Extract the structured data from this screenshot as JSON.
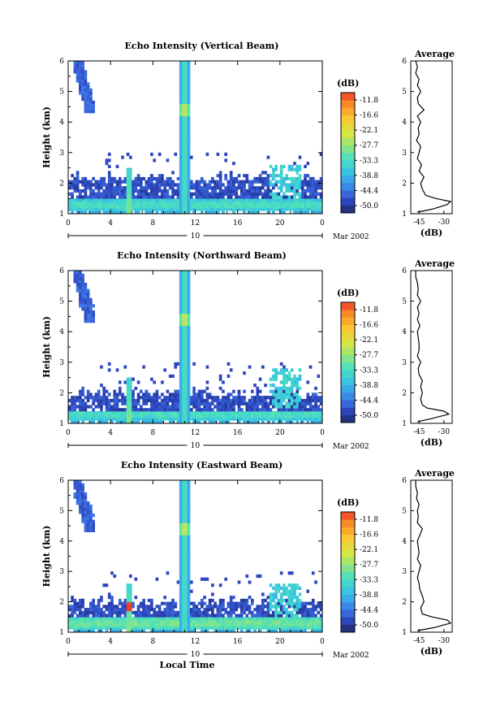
{
  "chart_data": [
    {
      "type": "heatmap",
      "title": "Echo Intensity (Vertical Beam)",
      "ylabel": "Height (km)",
      "x_ticks": [
        "0",
        "4",
        "8",
        "12",
        "16",
        "20",
        "0"
      ],
      "y_ticks": [
        "1",
        "2",
        "3",
        "4",
        "5",
        "6"
      ],
      "ylim": [
        1,
        6
      ],
      "day_label": "10",
      "date_label": "Mar 2002",
      "colorbar": {
        "unit": "(dB)",
        "ticks": [
          "-11.8",
          "-16.6",
          "-22.1",
          "-27.7",
          "-33.3",
          "-38.8",
          "-44.4",
          "-50.0"
        ]
      },
      "features": {
        "surface_layer": {
          "top_km": 1.5,
          "peak_db": -33
        },
        "boundary_layer_echo": {
          "top_km": 2.2,
          "db": -48
        },
        "plume_a": {
          "hour": 5.8,
          "top_km": 2.5
        },
        "plume_b": {
          "hour": 11,
          "top_km": 6
        },
        "high_cloud": {
          "hours": [
            0.5,
            2.5
          ],
          "km": [
            4.3,
            6
          ]
        },
        "late_cells": {
          "hours": [
            19,
            22
          ],
          "top_km": 2.6
        }
      },
      "average_profile": {
        "title": "Average",
        "xlabel": "(dB)",
        "x_ticks": [
          "-45",
          "-30"
        ],
        "xlim": [
          -50,
          -25
        ],
        "height_km": [
          1.05,
          1.15,
          1.3,
          1.4,
          1.5,
          1.6,
          1.8,
          2.0,
          2.2,
          2.4,
          2.6,
          2.8,
          3.0,
          3.2,
          3.4,
          3.6,
          3.8,
          4.0,
          4.1,
          4.2,
          4.4,
          4.6,
          4.8,
          5.0,
          5.2,
          5.4,
          5.6,
          5.8,
          6.0
        ],
        "db": [
          -46,
          -37,
          -28,
          -26,
          -35,
          -41,
          -43,
          -44,
          -42,
          -45,
          -43.5,
          -46,
          -45,
          -44,
          -46.5,
          -45,
          -45.5,
          -44,
          -45,
          -46,
          -42,
          -45.5,
          -46,
          -44,
          -46,
          -45,
          -47,
          -46,
          -47
        ]
      }
    },
    {
      "type": "heatmap",
      "title": "Echo Intensity (Northward Beam)",
      "ylabel": "Height (km)",
      "x_ticks": [
        "0",
        "4",
        "8",
        "12",
        "16",
        "20",
        "0"
      ],
      "y_ticks": [
        "1",
        "2",
        "3",
        "4",
        "5",
        "6"
      ],
      "ylim": [
        1,
        6
      ],
      "day_label": "10",
      "date_label": "Mar 2002",
      "colorbar": {
        "unit": "(dB)",
        "ticks": [
          "-11.8",
          "-16.6",
          "-22.1",
          "-27.7",
          "-33.3",
          "-38.8",
          "-44.4",
          "-50.0"
        ]
      },
      "features": {
        "surface_layer": {
          "top_km": 1.4,
          "peak_db": -33
        },
        "boundary_layer_echo": {
          "top_km": 2.0,
          "db": -48
        },
        "plume_a": {
          "hour": 5.8,
          "top_km": 2.5
        },
        "plume_b": {
          "hour": 11,
          "top_km": 6
        },
        "high_cloud": {
          "hours": [
            0.5,
            2.5
          ],
          "km": [
            4.3,
            6
          ]
        },
        "late_cells": {
          "hours": [
            19,
            22
          ],
          "top_km": 2.8
        }
      },
      "average_profile": {
        "title": "Average",
        "xlabel": "(dB)",
        "x_ticks": [
          "-45",
          "-30"
        ],
        "xlim": [
          -50,
          -25
        ],
        "height_km": [
          1.05,
          1.15,
          1.3,
          1.4,
          1.5,
          1.6,
          1.8,
          2.0,
          2.2,
          2.4,
          2.6,
          2.8,
          3.0,
          3.2,
          3.4,
          3.6,
          3.8,
          4.0,
          4.2,
          4.4,
          4.6,
          4.8,
          5.0,
          5.2,
          5.4,
          5.6,
          5.8,
          6.0
        ],
        "db": [
          -46,
          -38,
          -27,
          -30,
          -40,
          -43,
          -44,
          -43,
          -44,
          -43,
          -45,
          -45.5,
          -44,
          -46,
          -45,
          -45,
          -45.5,
          -46,
          -44.5,
          -46,
          -45,
          -46,
          -44,
          -46,
          -45.5,
          -46,
          -47,
          -47
        ]
      }
    },
    {
      "type": "heatmap",
      "title": "Echo Intensity (Eastward Beam)",
      "ylabel": "Height (km)",
      "xlabel": "Local Time",
      "x_ticks": [
        "0",
        "4",
        "8",
        "12",
        "16",
        "20",
        "0"
      ],
      "y_ticks": [
        "1",
        "2",
        "3",
        "4",
        "5",
        "6"
      ],
      "ylim": [
        1,
        6
      ],
      "day_label": "10",
      "date_label": "Mar 2002",
      "colorbar": {
        "unit": "(dB)",
        "ticks": [
          "-11.8",
          "-16.6",
          "-22.1",
          "-27.7",
          "-33.3",
          "-38.8",
          "-44.4",
          "-50.0"
        ]
      },
      "features": {
        "surface_layer": {
          "top_km": 1.5,
          "peak_db": -30
        },
        "boundary_layer_echo": {
          "top_km": 2.0,
          "db": -48
        },
        "plume_a": {
          "hour": 5.8,
          "top_km": 2.6
        },
        "plume_b": {
          "hour": 11,
          "top_km": 6
        },
        "high_cloud": {
          "hours": [
            0.5,
            2.5
          ],
          "km": [
            4.3,
            6
          ]
        },
        "late_cells": {
          "hours": [
            19,
            22
          ],
          "top_km": 2.6
        }
      },
      "average_profile": {
        "title": "Average",
        "xlabel": "(dB)",
        "x_ticks": [
          "-45",
          "-30"
        ],
        "xlim": [
          -50,
          -25
        ],
        "height_km": [
          1.05,
          1.15,
          1.3,
          1.4,
          1.5,
          1.6,
          1.8,
          2.0,
          2.2,
          2.4,
          2.6,
          2.8,
          3.0,
          3.2,
          3.4,
          3.6,
          3.8,
          4.0,
          4.2,
          4.4,
          4.6,
          4.8,
          5.0,
          5.2,
          5.4,
          5.6,
          5.8,
          6.0
        ],
        "db": [
          -46,
          -36,
          -26,
          -28,
          -37,
          -43,
          -44,
          -42,
          -43,
          -44.5,
          -45,
          -46,
          -45,
          -44,
          -46,
          -45,
          -45.5,
          -46,
          -44.5,
          -43,
          -46,
          -45.5,
          -46,
          -45,
          -46.5,
          -46,
          -47,
          -47
        ]
      }
    }
  ]
}
